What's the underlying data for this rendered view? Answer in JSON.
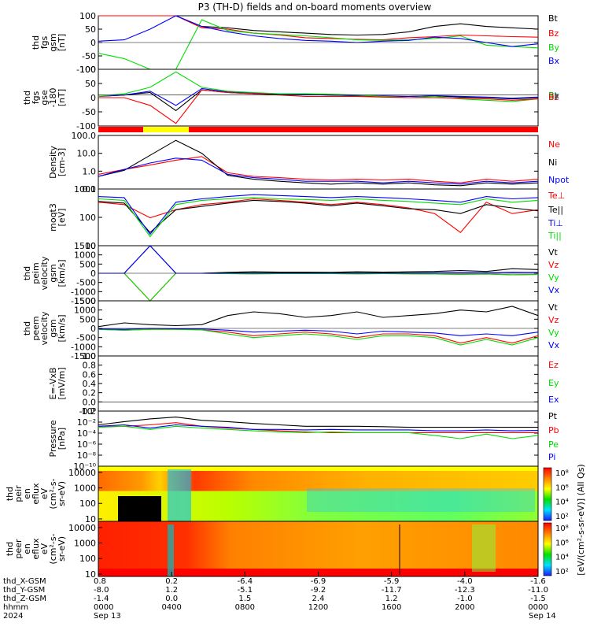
{
  "figure": {
    "title": "P3 (TH-D) fields and on-board moments overview"
  },
  "colors": {
    "black": "#000000",
    "red": "#ff0000",
    "green": "#00dd00",
    "blue": "#0000ff",
    "yellow": "#ffff00"
  },
  "chart_data": [
    {
      "type": "line",
      "panel": "fgs_gsm",
      "ylabel_lines": [
        "thd",
        "fgs",
        "gsm",
        "[nT]"
      ],
      "ylim": [
        -100,
        100
      ],
      "yticks": [
        "100",
        "50",
        "0",
        "-50",
        "-100"
      ],
      "series": [
        {
          "name": "Bt",
          "color": "#000000",
          "values": [
            100,
            100,
            100,
            100,
            60,
            55,
            45,
            40,
            35,
            30,
            28,
            30,
            40,
            60,
            70,
            60,
            55,
            50
          ]
        },
        {
          "name": "Bz",
          "color": "#ff0000",
          "values": [
            100,
            100,
            100,
            100,
            55,
            50,
            35,
            28,
            18,
            15,
            12,
            10,
            18,
            22,
            28,
            25,
            22,
            20
          ]
        },
        {
          "name": "By",
          "color": "#00dd00",
          "values": [
            -40,
            -60,
            -100,
            -100,
            85,
            45,
            35,
            30,
            25,
            18,
            10,
            8,
            10,
            15,
            25,
            -10,
            -15,
            -20
          ]
        },
        {
          "name": "Bx",
          "color": "#0000ff",
          "values": [
            5,
            10,
            50,
            100,
            60,
            40,
            25,
            15,
            8,
            5,
            0,
            5,
            8,
            20,
            15,
            0,
            -15,
            -5
          ]
        }
      ]
    },
    {
      "type": "line",
      "panel": "fgs_gse",
      "ylabel_lines": [
        "thd",
        "fgs",
        "gse",
        "-180",
        "[nT]"
      ],
      "ylim": [
        -120,
        100
      ],
      "yticks": [
        "100",
        "50",
        "0",
        "-50",
        "-100"
      ],
      "series": [
        {
          "name": "Bt",
          "color": "#000000",
          "values": [
            -5,
            0,
            10,
            -60,
            20,
            10,
            5,
            3,
            2,
            0,
            -2,
            -5,
            -5,
            -3,
            -8,
            -10,
            -15,
            -10
          ]
        },
        {
          "name": "Bx",
          "color": "#0000ff",
          "values": [
            -5,
            0,
            15,
            -40,
            25,
            12,
            8,
            4,
            2,
            0,
            -2,
            -3,
            -5,
            -2,
            -5,
            -8,
            -12,
            -8
          ]
        },
        {
          "name": "By",
          "color": "#00dd00",
          "values": [
            -5,
            5,
            30,
            90,
            30,
            15,
            10,
            5,
            5,
            3,
            0,
            -5,
            -10,
            -5,
            -15,
            -20,
            -25,
            -15
          ]
        },
        {
          "name": "Bz",
          "color": "#ff0000",
          "values": [
            -10,
            -10,
            -40,
            -110,
            20,
            10,
            5,
            0,
            -5,
            -5,
            -5,
            -8,
            -10,
            -10,
            -12,
            -15,
            -20,
            -15
          ]
        }
      ]
    },
    {
      "type": "line",
      "panel": "density",
      "ylabel_lines": [
        "Density",
        "[cm-3]"
      ],
      "yscale": "log",
      "ylim": [
        0.05,
        100
      ],
      "yticks": [
        "100.0",
        "10.0",
        "1.0",
        "0.1"
      ],
      "series": [
        {
          "name": "Ne",
          "color": "#ff0000",
          "values": [
            0.4,
            0.8,
            1.5,
            3,
            5,
            0.5,
            0.3,
            0.25,
            0.2,
            0.18,
            0.2,
            0.18,
            0.2,
            0.15,
            0.12,
            0.2,
            0.15,
            0.2
          ]
        },
        {
          "name": "Ni",
          "color": "#000000",
          "values": [
            0.3,
            0.7,
            6,
            50,
            8,
            0.35,
            0.2,
            0.15,
            0.12,
            0.1,
            0.12,
            0.1,
            0.12,
            0.09,
            0.08,
            0.12,
            0.1,
            0.12
          ]
        },
        {
          "name": "Npot",
          "color": "#0000ff",
          "values": [
            0.3,
            0.8,
            2,
            4,
            3,
            0.4,
            0.25,
            0.2,
            0.15,
            0.15,
            0.15,
            0.12,
            0.15,
            0.12,
            0.1,
            0.15,
            0.12,
            0.15
          ]
        }
      ]
    },
    {
      "type": "line",
      "panel": "temperature",
      "ylabel_lines": [
        "moqt3",
        "[eV]"
      ],
      "yscale": "log",
      "ylim": [
        10,
        10000
      ],
      "yticks": [
        "1000",
        "100",
        "10"
      ],
      "series": [
        {
          "name": "Te⊥",
          "color": "#ff0000",
          "values": [
            2000,
            1500,
            300,
            800,
            1500,
            2000,
            3000,
            2500,
            2000,
            1500,
            2000,
            1500,
            1000,
            500,
            50,
            2000,
            500,
            800
          ]
        },
        {
          "name": "Te||",
          "color": "#000000",
          "values": [
            2200,
            1800,
            50,
            800,
            1200,
            1800,
            2500,
            2200,
            1800,
            1300,
            1800,
            1300,
            900,
            800,
            500,
            1500,
            1000,
            700
          ]
        },
        {
          "name": "Ti⊥",
          "color": "#0000ff",
          "values": [
            4000,
            3500,
            40,
            2000,
            3000,
            4000,
            5000,
            4500,
            4000,
            3500,
            4000,
            3500,
            3000,
            2500,
            2000,
            4000,
            3000,
            3500
          ]
        },
        {
          "name": "Ti||",
          "color": "#00dd00",
          "values": [
            3000,
            2500,
            30,
            1500,
            2500,
            3000,
            3500,
            3000,
            2800,
            2500,
            3000,
            2500,
            2200,
            1800,
            1500,
            3000,
            2000,
            2500
          ]
        }
      ]
    },
    {
      "type": "line",
      "panel": "peim_velocity",
      "ylabel_lines": [
        "thd",
        "peim",
        "velocity",
        "gsm",
        "[km/s]"
      ],
      "ylim": [
        -1500,
        1500
      ],
      "yticks": [
        "1500",
        "1000",
        "500",
        "0",
        "-500",
        "-1000",
        "-1500"
      ],
      "series": [
        {
          "name": "Vt",
          "color": "#000000",
          "values": [
            0,
            0,
            1500,
            0,
            0,
            50,
            80,
            60,
            60,
            50,
            80,
            60,
            80,
            100,
            150,
            100,
            250,
            200
          ]
        },
        {
          "name": "Vz",
          "color": "#ff0000",
          "values": [
            0,
            0,
            -1500,
            0,
            0,
            -20,
            -30,
            -20,
            -20,
            -20,
            -30,
            -20,
            -30,
            -40,
            -50,
            -40,
            -80,
            -60
          ]
        },
        {
          "name": "Vy",
          "color": "#00dd00",
          "values": [
            0,
            0,
            -1500,
            0,
            0,
            -20,
            -30,
            -20,
            -20,
            -20,
            -30,
            -20,
            -30,
            -40,
            -60,
            -40,
            -80,
            -60
          ]
        },
        {
          "name": "Vx",
          "color": "#0000ff",
          "values": [
            0,
            0,
            1500,
            0,
            0,
            20,
            20,
            20,
            20,
            20,
            20,
            20,
            20,
            30,
            40,
            30,
            50,
            40
          ]
        }
      ]
    },
    {
      "type": "line",
      "panel": "peem_velocity",
      "ylabel_lines": [
        "thd",
        "peem",
        "velocity",
        "gsm",
        "[km/s]"
      ],
      "ylim": [
        -1500,
        1500
      ],
      "yticks": [
        "1500",
        "1000",
        "500",
        "0",
        "-500",
        "-1000",
        "-1500"
      ],
      "series": [
        {
          "name": "Vt",
          "color": "#000000",
          "values": [
            100,
            300,
            200,
            150,
            200,
            700,
            900,
            800,
            600,
            700,
            900,
            600,
            700,
            800,
            1000,
            900,
            1200,
            700
          ]
        },
        {
          "name": "Vz",
          "color": "#ff0000",
          "values": [
            -50,
            -100,
            -50,
            -50,
            -80,
            -200,
            -400,
            -300,
            -200,
            -300,
            -500,
            -300,
            -300,
            -400,
            -800,
            -500,
            -800,
            -400
          ]
        },
        {
          "name": "Vy",
          "color": "#00dd00",
          "values": [
            -50,
            -100,
            -50,
            -50,
            -80,
            -300,
            -500,
            -400,
            -300,
            -400,
            -600,
            -400,
            -400,
            -500,
            -900,
            -600,
            -900,
            -500
          ]
        },
        {
          "name": "Vx",
          "color": "#0000ff",
          "values": [
            -30,
            -50,
            0,
            -20,
            -30,
            -100,
            -200,
            -150,
            -100,
            -150,
            -300,
            -150,
            -200,
            -250,
            -400,
            -300,
            -400,
            -200
          ]
        }
      ]
    },
    {
      "type": "line",
      "panel": "efield",
      "ylabel_lines": [
        "E=-VxB",
        "[mV/m]"
      ],
      "ylim": [
        -0.2,
        1.0
      ],
      "yticks": [
        "1.0",
        "0.8",
        "0.6",
        "0.4",
        "0.2",
        "0.0",
        "-0.2"
      ],
      "series": [
        {
          "name": "Ez",
          "color": "#ff0000",
          "values": []
        },
        {
          "name": "Ey",
          "color": "#00dd00",
          "values": []
        },
        {
          "name": "Ex",
          "color": "#0000ff",
          "values": []
        }
      ]
    },
    {
      "type": "line",
      "panel": "pressure",
      "ylabel_lines": [
        "Pressure",
        "[nPa]"
      ],
      "yscale": "log",
      "ylim": [
        1e-10,
        100.0
      ],
      "yticks": [
        "10⁰",
        "10⁻²",
        "10⁻⁴",
        "10⁻⁶",
        "10⁻⁸",
        "10⁻¹⁰"
      ],
      "series": [
        {
          "name": "Pt",
          "color": "#000000",
          "values": [
            0.1,
            0.5,
            2,
            5,
            1,
            0.5,
            0.2,
            0.1,
            0.05,
            0.05,
            0.05,
            0.04,
            0.03,
            0.03,
            0.03,
            0.03,
            0.03,
            0.03
          ]
        },
        {
          "name": "Pb",
          "color": "#ff0000",
          "values": [
            0.05,
            0.05,
            0.1,
            0.3,
            0.05,
            0.02,
            0.01,
            0.005,
            0.003,
            0.002,
            0.002,
            0.002,
            0.002,
            0.002,
            0.002,
            0.002,
            0.002,
            0.002
          ]
        },
        {
          "name": "Pe",
          "color": "#00dd00",
          "values": [
            0.03,
            0.05,
            0.01,
            0.05,
            0.02,
            0.01,
            0.005,
            0.003,
            0.002,
            0.003,
            0.002,
            0.002,
            0.002,
            0.0005,
            0.0001,
            0.001,
            0.0001,
            0.0005
          ]
        },
        {
          "name": "Pi",
          "color": "#0000ff",
          "values": [
            0.05,
            0.1,
            0.02,
            0.1,
            0.05,
            0.03,
            0.01,
            0.01,
            0.008,
            0.01,
            0.008,
            0.008,
            0.008,
            0.005,
            0.005,
            0.008,
            0.005,
            0.006
          ]
        }
      ]
    },
    {
      "type": "heatmap",
      "panel": "peir_spectrogram",
      "ylabel_lines": [
        "thd",
        "peir",
        "en",
        "eflux",
        "eV",
        "(cm²-s-",
        "sr-eV)"
      ],
      "yscale": "log",
      "ylim": [
        7,
        25000
      ],
      "yticks": [
        "10000",
        "1000",
        "100",
        "10"
      ]
    },
    {
      "type": "heatmap",
      "panel": "peer_spectrogram",
      "ylabel_lines": [
        "thd",
        "peer",
        "en",
        "eflux",
        "eV",
        "(cm²-s-",
        "sr-eV)"
      ],
      "yscale": "log",
      "ylim": [
        7,
        25000
      ],
      "yticks": [
        "10000",
        "1000",
        "100",
        "10"
      ]
    }
  ],
  "colorbar": {
    "label": "[eV/(cm²-s-sr-eV)] (All Qs)",
    "ticks_upper": [
      "10⁸",
      "10⁶",
      "10⁴",
      "10²"
    ],
    "ticks_lower": [
      "10⁸",
      "10⁶",
      "10⁴",
      "10²"
    ]
  },
  "orbit_bar": {
    "colors": [
      "#ff0000",
      "#ffff00"
    ]
  },
  "xaxis": {
    "row_labels": [
      "thd_X-GSM",
      "thd_Y-GSM",
      "thd_Z-GSM",
      "hhmm",
      "2024"
    ],
    "columns": [
      [
        "0.8",
        "-8.0",
        "-1.4",
        "0000",
        "Sep 13"
      ],
      [
        "0.2",
        "1.2",
        "0.0",
        "0400",
        ""
      ],
      [
        "-6.4",
        "-5.1",
        "1.5",
        "0800",
        ""
      ],
      [
        "-6.9",
        "-9.2",
        "2.4",
        "1200",
        ""
      ],
      [
        "-5.9",
        "-11.7",
        "1.2",
        "1600",
        ""
      ],
      [
        "-4.0",
        "-12.3",
        "-1.0",
        "2000",
        ""
      ],
      [
        "-1.6",
        "-11.0",
        "-1.5",
        "0000",
        "Sep 14"
      ]
    ]
  }
}
